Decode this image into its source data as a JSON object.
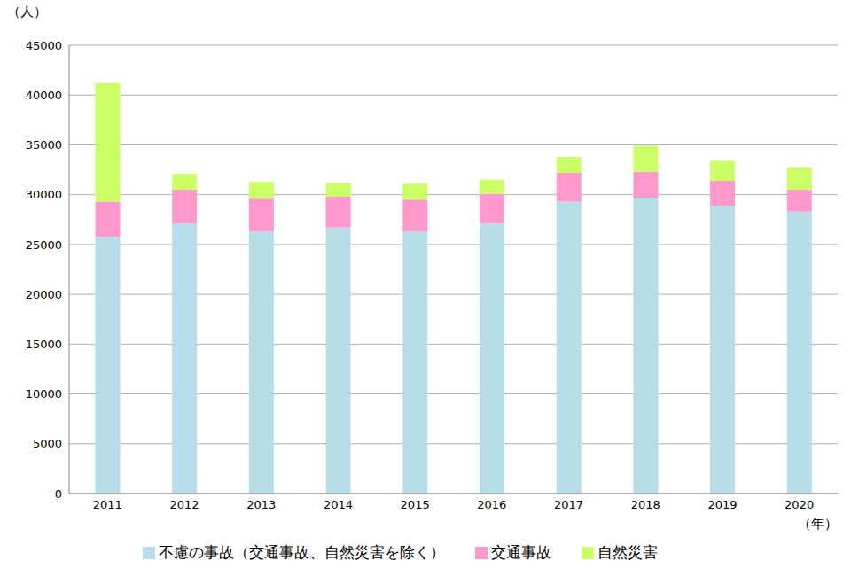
{
  "chart_data": {
    "type": "bar",
    "stacked": true,
    "grid": true,
    "legend": "bottom",
    "y_label": "（人）",
    "x_label": "（年）",
    "categories": [
      "2011",
      "2012",
      "2013",
      "2014",
      "2015",
      "2016",
      "2017",
      "2018",
      "2019",
      "2020"
    ],
    "series": [
      {
        "name": "不慮の事故（交通事故、自然災害を除く）",
        "color": "#b7dde8",
        "values": [
          25800,
          27100,
          26300,
          26700,
          26300,
          27100,
          29300,
          29700,
          28900,
          28300
        ]
      },
      {
        "name": "交通事故",
        "color": "#ff99cc",
        "values": [
          3500,
          3400,
          3300,
          3100,
          3200,
          3000,
          2900,
          2600,
          2500,
          2200
        ]
      },
      {
        "name": "自然災害",
        "color": "#ccff66",
        "values": [
          11900,
          1600,
          1700,
          1400,
          1600,
          1400,
          1600,
          2600,
          2000,
          2200
        ]
      }
    ],
    "ylim": [
      0,
      45000
    ],
    "yticks": [
      0,
      5000,
      10000,
      15000,
      20000,
      25000,
      30000,
      35000,
      40000,
      45000
    ]
  }
}
